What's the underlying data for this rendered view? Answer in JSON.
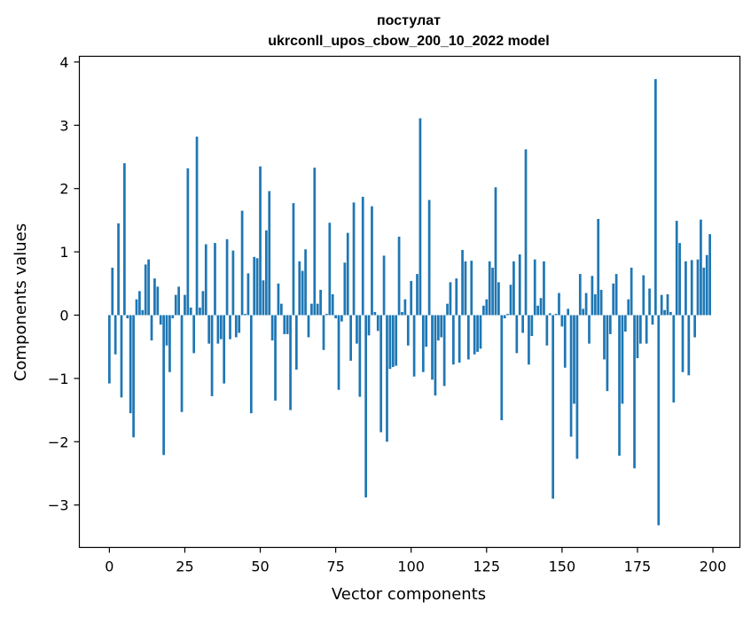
{
  "chart_data": {
    "type": "bar",
    "title": "постулат",
    "subtitle": "ukrconll_upos_cbow_200_10_2022 model",
    "xlabel": "Vector components",
    "ylabel": "Components values",
    "xlim": [
      -9.95,
      208.95
    ],
    "ylim": [
      -3.67,
      4.09
    ],
    "xticks": [
      0,
      25,
      50,
      75,
      100,
      125,
      150,
      175,
      200
    ],
    "xtick_labels": [
      "0",
      "25",
      "50",
      "75",
      "100",
      "125",
      "150",
      "175",
      "200"
    ],
    "yticks": [
      -3,
      -2,
      -1,
      0,
      1,
      2,
      3,
      4
    ],
    "ytick_labels": [
      "−3",
      "−2",
      "−1",
      "0",
      "1",
      "2",
      "3",
      "4"
    ],
    "grid": false,
    "bar_color": "#1f77b4",
    "x": [
      0,
      1,
      2,
      3,
      4,
      5,
      6,
      7,
      8,
      9,
      10,
      11,
      12,
      13,
      14,
      15,
      16,
      17,
      18,
      19,
      20,
      21,
      22,
      23,
      24,
      25,
      26,
      27,
      28,
      29,
      30,
      31,
      32,
      33,
      34,
      35,
      36,
      37,
      38,
      39,
      40,
      41,
      42,
      43,
      44,
      45,
      46,
      47,
      48,
      49,
      50,
      51,
      52,
      53,
      54,
      55,
      56,
      57,
      58,
      59,
      60,
      61,
      62,
      63,
      64,
      65,
      66,
      67,
      68,
      69,
      70,
      71,
      72,
      73,
      74,
      75,
      76,
      77,
      78,
      79,
      80,
      81,
      82,
      83,
      84,
      85,
      86,
      87,
      88,
      89,
      90,
      91,
      92,
      93,
      94,
      95,
      96,
      97,
      98,
      99,
      100,
      101,
      102,
      103,
      104,
      105,
      106,
      107,
      108,
      109,
      110,
      111,
      112,
      113,
      114,
      115,
      116,
      117,
      118,
      119,
      120,
      121,
      122,
      123,
      124,
      125,
      126,
      127,
      128,
      129,
      130,
      131,
      132,
      133,
      134,
      135,
      136,
      137,
      138,
      139,
      140,
      141,
      142,
      143,
      144,
      145,
      146,
      147,
      148,
      149,
      150,
      151,
      152,
      153,
      154,
      155,
      156,
      157,
      158,
      159,
      160,
      161,
      162,
      163,
      164,
      165,
      166,
      167,
      168,
      169,
      170,
      171,
      172,
      173,
      174,
      175,
      176,
      177,
      178,
      179,
      180,
      181,
      182,
      183,
      184,
      185,
      186,
      187,
      188,
      189,
      190,
      191,
      192,
      193,
      194,
      195,
      196,
      197,
      198,
      199
    ],
    "values": [
      -1.08,
      0.75,
      -0.62,
      1.45,
      -1.3,
      2.4,
      -0.05,
      -1.55,
      -1.93,
      0.25,
      0.38,
      0.08,
      0.8,
      0.88,
      -0.4,
      0.58,
      0.45,
      -0.15,
      -2.21,
      -0.48,
      -0.9,
      -0.05,
      0.32,
      0.45,
      -1.53,
      0.32,
      2.32,
      0.12,
      -0.6,
      2.82,
      0.12,
      0.38,
      1.12,
      -0.45,
      -1.28,
      1.14,
      -0.45,
      -0.38,
      -1.08,
      1.2,
      -0.38,
      1.02,
      -0.35,
      -0.28,
      1.65,
      0.02,
      0.66,
      -1.55,
      0.92,
      0.9,
      2.35,
      0.55,
      1.34,
      1.96,
      -0.4,
      -1.35,
      0.5,
      0.18,
      -0.3,
      -0.3,
      -1.5,
      1.77,
      -0.86,
      0.85,
      0.7,
      1.04,
      -0.35,
      0.18,
      2.33,
      0.18,
      0.4,
      -0.55,
      0.02,
      1.46,
      0.33,
      -0.05,
      -1.18,
      -0.1,
      0.83,
      1.3,
      -0.72,
      1.78,
      -0.45,
      -1.29,
      1.87,
      -2.88,
      -0.32,
      1.72,
      0.05,
      -0.25,
      -1.85,
      0.94,
      -2.0,
      -0.85,
      -0.82,
      -0.8,
      1.24,
      0.05,
      0.25,
      -0.48,
      0.54,
      -0.97,
      0.65,
      3.11,
      -0.9,
      -0.5,
      1.82,
      -1.02,
      -1.27,
      -0.4,
      -0.35,
      -1.12,
      0.18,
      0.52,
      -0.78,
      0.58,
      -0.75,
      1.03,
      0.85,
      -0.7,
      0.86,
      -0.62,
      -0.58,
      -0.53,
      0.15,
      0.25,
      0.85,
      0.75,
      2.02,
      0.52,
      -1.66,
      -0.05,
      0.02,
      0.48,
      0.85,
      -0.6,
      0.96,
      -0.28,
      2.62,
      -0.78,
      -0.33,
      0.88,
      0.15,
      0.27,
      0.85,
      -0.48,
      0.03,
      -2.9,
      0.02,
      0.35,
      -0.18,
      -0.83,
      0.1,
      -1.92,
      -1.4,
      -2.27,
      0.65,
      0.1,
      0.35,
      -0.45,
      0.62,
      0.33,
      1.52,
      0.4,
      -0.7,
      -1.2,
      -0.3,
      0.5,
      0.65,
      -2.22,
      -1.4,
      -0.26,
      0.25,
      0.75,
      -2.42,
      -0.68,
      -0.45,
      0.63,
      -0.45,
      0.42,
      -0.15,
      3.73,
      -3.32,
      0.32,
      0.08,
      0.33,
      0.05,
      -1.38,
      1.49,
      1.14,
      -0.9,
      0.85,
      -0.95,
      0.87,
      -0.35,
      0.88,
      1.51,
      0.75,
      0.95,
      1.28
    ]
  }
}
